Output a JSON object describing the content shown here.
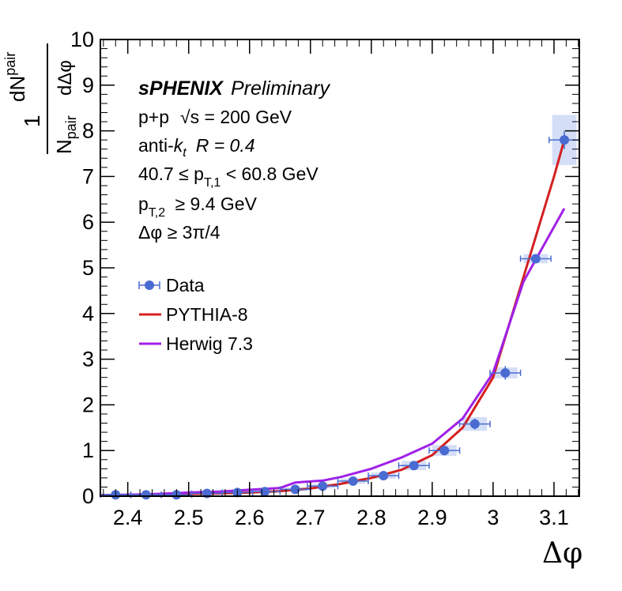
{
  "chart_data": {
    "type": "scatter",
    "xlabel": "Δφ",
    "ylabel": {
      "numerator_one": "1",
      "numerator_dn": "dN",
      "numerator_dn_sub": "pair",
      "denominator_n": "N",
      "denominator_n_sub": "pair",
      "denominator_dphi": "dΔφ"
    },
    "xlim": [
      2.355,
      3.1416
    ],
    "ylim": [
      0,
      10
    ],
    "x_ticks": [
      "2.4",
      "2.5",
      "2.6",
      "2.7",
      "2.8",
      "2.9",
      "3",
      "3.1"
    ],
    "x_tick_values": [
      2.4,
      2.5,
      2.6,
      2.7,
      2.8,
      2.9,
      3.0,
      3.1
    ],
    "y_ticks": [
      "0",
      "1",
      "2",
      "3",
      "4",
      "5",
      "6",
      "7",
      "8",
      "9",
      "10"
    ],
    "y_tick_values": [
      0,
      1,
      2,
      3,
      4,
      5,
      6,
      7,
      8,
      9,
      10
    ],
    "legend": {
      "placement": "left",
      "entries": [
        {
          "name": "Data",
          "style": "marker-errorbar"
        },
        {
          "name": "PYTHIA-8",
          "style": "line"
        },
        {
          "name": "Herwig 7.3",
          "style": "line"
        }
      ]
    },
    "annotations": {
      "experiment": "sPHENIX",
      "status": "Preliminary",
      "system_pre": "p+p",
      "system_sqrt": "√s",
      "system_post": " = 200 GeV",
      "jet_pre": "anti-",
      "jet_k": "k",
      "jet_k_sub": "t",
      "jet_r": "R = 0.4",
      "pt1_pre": "40.7 ≤ p",
      "pt1_sub": "T,1",
      "pt1_post": " < 60.8 GeV",
      "pt2_pre": "p",
      "pt2_sub": "T,2",
      "pt2_post": " ≥ 9.4 GeV",
      "dphi_cut": "Δφ ≥ 3π/4"
    },
    "series": [
      {
        "name": "Data",
        "type": "scatter",
        "x": [
          2.38,
          2.43,
          2.48,
          2.53,
          2.58,
          2.625,
          2.675,
          2.72,
          2.77,
          2.82,
          2.87,
          2.92,
          2.97,
          3.02,
          3.07,
          3.117
        ],
        "y": [
          0.03,
          0.03,
          0.03,
          0.06,
          0.08,
          0.1,
          0.15,
          0.22,
          0.33,
          0.45,
          0.67,
          1.0,
          1.58,
          2.7,
          5.2,
          7.8
        ],
        "x_err": [
          0.025,
          0.025,
          0.025,
          0.025,
          0.025,
          0.025,
          0.025,
          0.025,
          0.025,
          0.025,
          0.025,
          0.025,
          0.025,
          0.025,
          0.025,
          0.025
        ],
        "y_err": [
          0.02,
          0.02,
          0.02,
          0.02,
          0.03,
          0.03,
          0.04,
          0.05,
          0.05,
          0.06,
          0.07,
          0.09,
          0.12,
          0.15,
          0.08,
          0.2
        ],
        "sys_err": [
          0.02,
          0.02,
          0.02,
          0.03,
          0.03,
          0.03,
          0.04,
          0.05,
          0.06,
          0.07,
          0.1,
          0.12,
          0.15,
          0.12,
          0.1,
          0.55
        ],
        "color": "#4a6bd1",
        "sys_color": "#c9d6f5"
      },
      {
        "name": "PYTHIA-8",
        "type": "line",
        "x": [
          2.355,
          2.4,
          2.45,
          2.5,
          2.55,
          2.6,
          2.65,
          2.7,
          2.75,
          2.8,
          2.85,
          2.9,
          2.95,
          3.0,
          3.05,
          3.1,
          3.117
        ],
        "y": [
          0.02,
          0.03,
          0.04,
          0.05,
          0.06,
          0.08,
          0.11,
          0.17,
          0.27,
          0.4,
          0.58,
          0.9,
          1.5,
          2.6,
          4.8,
          7.0,
          7.8
        ],
        "color": "#d42020"
      },
      {
        "name": "Herwig 7.3",
        "type": "line",
        "x": [
          2.355,
          2.4,
          2.45,
          2.5,
          2.55,
          2.6,
          2.65,
          2.675,
          2.72,
          2.75,
          2.8,
          2.85,
          2.9,
          2.95,
          3.0,
          3.05,
          3.117
        ],
        "y": [
          0.02,
          0.03,
          0.05,
          0.08,
          0.1,
          0.14,
          0.18,
          0.3,
          0.34,
          0.42,
          0.6,
          0.85,
          1.15,
          1.7,
          2.7,
          4.7,
          6.3
        ],
        "color": "#a020e8"
      }
    ]
  }
}
